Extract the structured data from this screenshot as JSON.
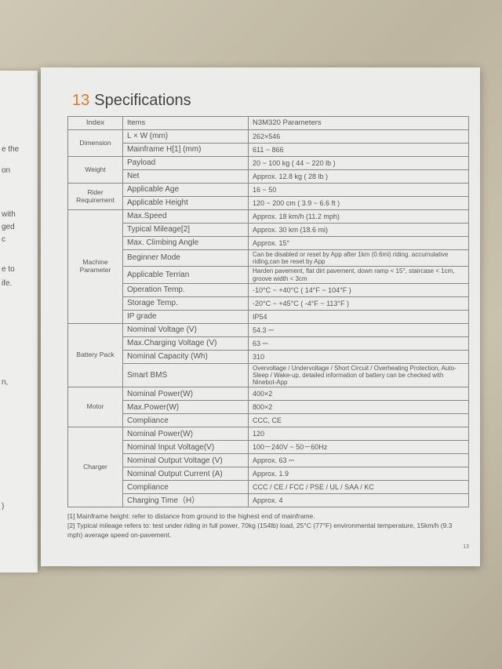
{
  "left_page_fragments": [
    "e the",
    "on",
    "with",
    "ged",
    "c",
    "e to",
    "ife.",
    "n,",
    ")"
  ],
  "section": {
    "number": "13",
    "title": "Specifications"
  },
  "table": {
    "headers": {
      "index": "Index",
      "items": "Items",
      "params": "N3M320  Parameters"
    },
    "groups": [
      {
        "name": "Dimension",
        "rows": [
          [
            "L × W (mm)",
            "262×546"
          ],
          [
            "Mainframe H[1] (mm)",
            "611 ~ 866"
          ]
        ]
      },
      {
        "name": "Weight",
        "rows": [
          [
            "Payload",
            "20 ~ 100 kg  ( 44 ~ 220 lb )"
          ],
          [
            "Net",
            "Approx. 12.8 kg  ( 28 lb )"
          ]
        ]
      },
      {
        "name": "Rider Requirement",
        "rows": [
          [
            "Applicable Age",
            "16 ~ 50"
          ],
          [
            "Applicable Height",
            "120 ~ 200 cm  ( 3.9 ~ 6.6 ft )"
          ]
        ]
      },
      {
        "name": "Machine Parameter",
        "rows": [
          [
            "Max.Speed",
            "Approx. 18 km/h  (11.2 mph)"
          ],
          [
            "Typical Mileage[2]",
            "Approx. 30 km  (18.6 mi)"
          ],
          [
            "Max. Climbing Angle",
            "Approx. 15°"
          ],
          [
            "Beginner Mode",
            "Can be disabled or reset by App after 1km (0.6mi) riding. accumulative riding,can be reset by App"
          ],
          [
            "Applicable Terrian",
            "Harden pavement, flat dirt pavement,  down ramp < 15°, staircase < 1cm, groove width < 3cm"
          ],
          [
            "Operation Temp.",
            "-10°C ~ +40°C  ( 14°F ~ 104°F )"
          ],
          [
            "Storage Temp.",
            "-20°C ~ +45°C  ( -4°F ~ 113°F )"
          ],
          [
            "IP grade",
            "IP54"
          ]
        ]
      },
      {
        "name": "Battery Pack",
        "rows": [
          [
            "Nominal  Voltage (V)",
            "54.3 ⎓"
          ],
          [
            "Max.Charging Voltage (V)",
            "63 ⎓"
          ],
          [
            "Nominal Capacity (Wh)",
            "310"
          ],
          [
            "Smart BMS",
            "Overvoltage / Undervoltage / Short Circuit / Overheating Protection, Auto-Sleep / Wake-up, detailed information of battery can be checked with Ninebot-App"
          ]
        ]
      },
      {
        "name": "Motor",
        "rows": [
          [
            "Nominal Power(W)",
            "400×2"
          ],
          [
            "Max.Power(W)",
            "800×2"
          ],
          [
            "Compliance",
            "CCC, CE"
          ]
        ]
      },
      {
        "name": "Charger",
        "rows": [
          [
            "Nominal Power(W)",
            "120"
          ],
          [
            "Nominal Input Voltage(V)",
            "100－240V ~ 50－60Hz"
          ],
          [
            "Nominal Output Voltage (V)",
            "Approx. 63 ⎓"
          ],
          [
            "Nominal Output Current (A)",
            "Approx. 1.9"
          ],
          [
            "Compliance",
            "CCC / CE / FCC / PSE / UL / SAA / KC"
          ],
          [
            "Charging Time（H）",
            "Approx. 4"
          ]
        ]
      }
    ]
  },
  "notes": [
    "[1] Mainframe height: refer to distance from ground to the highest end of mainframe.",
    "[2] Typical mileage refers to: test under riding in full power, 70kg (154lb) load, 25°C (77°F) environmental temperature, 15km/h (9.3 mph) average speed on-pavement."
  ],
  "page_number": "13",
  "colors": {
    "accent": "#e07a2a",
    "paper": "#ececea"
  }
}
